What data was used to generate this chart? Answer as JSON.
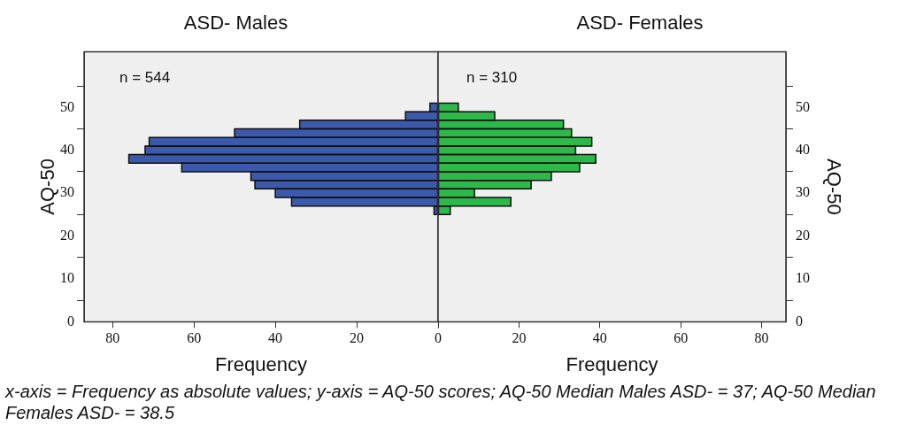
{
  "chart_data": [
    {
      "type": "histogram",
      "orientation": "horizontal",
      "title": "ASD- Males",
      "xlabel": "Frequency",
      "ylabel": "AQ-50",
      "bins": [
        25,
        27,
        29,
        31,
        33,
        35,
        37,
        39,
        41,
        43,
        45,
        47,
        49,
        51
      ],
      "values": [
        1,
        36,
        40,
        45,
        46,
        63,
        76,
        72,
        71,
        50,
        34,
        8,
        2
      ],
      "color": "#3c5aab",
      "xlim": [
        87,
        0
      ],
      "xticks": [
        {
          "value": 0,
          "label": null
        },
        20,
        40,
        60,
        80
      ],
      "ylim": [
        0,
        63
      ],
      "yticks": [
        0,
        10,
        20,
        30,
        40,
        50
      ],
      "grid": false,
      "annotations": [
        "n = 544",
        "x-axis = Frequency as absolute values; y-axis = AQ-50 scores; AQ-50 Median Males ASD- = 37; AQ-50 Median Females ASD- = 38.5"
      ]
    },
    {
      "type": "histogram",
      "orientation": "horizontal",
      "title": "ASD- Females",
      "xlabel": "Frequency",
      "ylabel": "AQ-50",
      "bins": [
        25,
        27,
        29,
        31,
        33,
        35,
        37,
        39,
        41,
        43,
        45,
        47,
        49,
        51
      ],
      "values": [
        3,
        18,
        9,
        23,
        28,
        35,
        39,
        34,
        38,
        33,
        31,
        14,
        5
      ],
      "color": "#2db84a",
      "xlim": [
        0,
        86
      ],
      "xticks": [
        0,
        20,
        40,
        60,
        80
      ],
      "ylim": [
        0,
        63
      ],
      "yticks": [
        0,
        10,
        20,
        30,
        40,
        50
      ],
      "grid": false,
      "annotations": [
        "n = 310"
      ]
    }
  ]
}
